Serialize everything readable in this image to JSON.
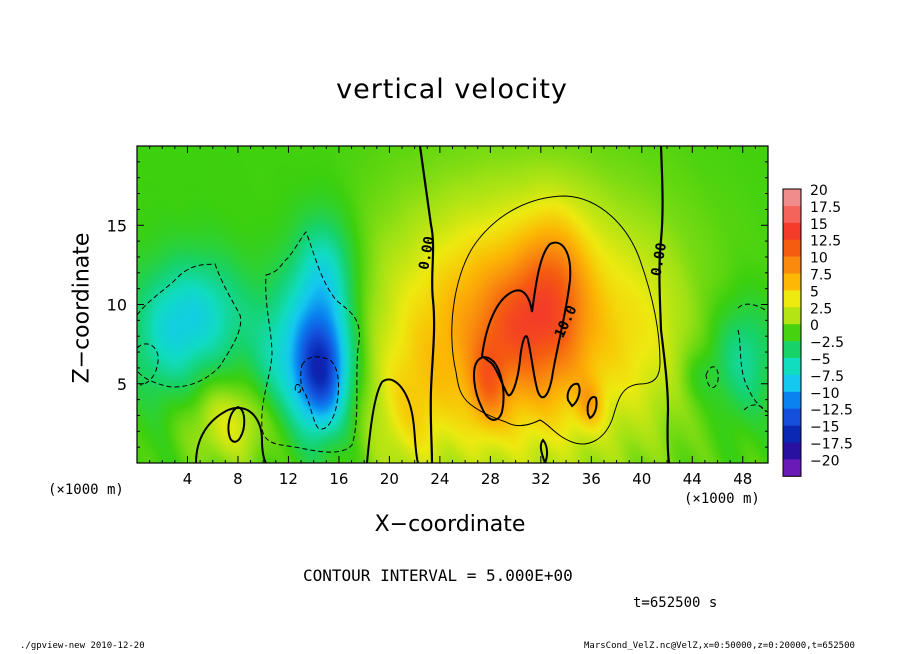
{
  "chart_data": {
    "type": "heatmap",
    "title": "vertical velocity",
    "xlabel": "X−coordinate",
    "ylabel": "Z−coordinate",
    "x_unit_label": "(×1000 m)",
    "xlim": [
      0,
      50
    ],
    "ylim": [
      0,
      20
    ],
    "x_ticks": [
      4,
      8,
      12,
      16,
      20,
      24,
      28,
      32,
      36,
      40,
      44,
      48
    ],
    "y_ticks": [
      5,
      10,
      15
    ],
    "colorbar": {
      "labels": [
        "20",
        "17.5",
        "15",
        "12.5",
        "10",
        "7.5",
        "5",
        "2.5",
        "0",
        "−2.5",
        "−5",
        "−7.5",
        "−10",
        "−12.5",
        "−15",
        "−17.5",
        "−20"
      ],
      "colors": [
        "#f08c8c",
        "#f5645a",
        "#f43c28",
        "#f55c10",
        "#f98a0e",
        "#fcb804",
        "#eeea10",
        "#b4e414",
        "#46d20e",
        "#17d268",
        "#10dcc0",
        "#14c8f0",
        "#0a82f0",
        "#1450dc",
        "#0a28b4",
        "#2810a0",
        "#6a1ab6"
      ]
    },
    "contour_labels": [
      {
        "text": "0.00",
        "x": 23.3,
        "y": 13.2,
        "rotate": -80
      },
      {
        "text": "0.00",
        "x": 41.7,
        "y": 12.8,
        "rotate": -80
      },
      {
        "text": "10.0",
        "x": 34.3,
        "y": 8.8,
        "rotate": -65
      }
    ],
    "contour_interval": 5.0,
    "blobs": [
      {
        "x": 30.5,
        "y": 8.2,
        "sx": 9.0,
        "sy": 7.0,
        "a": 5.2
      },
      {
        "x": 29.8,
        "y": 8.5,
        "sx": 6.0,
        "sy": 4.6,
        "a": 5.0
      },
      {
        "x": 33.0,
        "y": 10.8,
        "sx": 1.8,
        "sy": 3.4,
        "a": 5.0
      },
      {
        "x": 30.0,
        "y": 8.8,
        "sx": 1.7,
        "sy": 2.2,
        "a": 3.0
      },
      {
        "x": 27.8,
        "y": 5.0,
        "sx": 1.0,
        "sy": 1.9,
        "a": 4.5
      },
      {
        "x": 35.5,
        "y": 3.8,
        "sx": 0.6,
        "sy": 1.0,
        "a": 2.0
      },
      {
        "x": 36.2,
        "y": 3.6,
        "sx": 0.6,
        "sy": 1.0,
        "a": 2.0
      },
      {
        "x": 21.5,
        "y": 3.0,
        "sx": 2.0,
        "sy": 3.0,
        "a": 2.8
      },
      {
        "x": 7.5,
        "y": 2.5,
        "sx": 2.6,
        "sy": 2.0,
        "a": 4.4
      },
      {
        "x": 40.5,
        "y": 8.0,
        "sx": 2.0,
        "sy": 4.0,
        "a": 1.2
      },
      {
        "x": 14.6,
        "y": 5.6,
        "sx": 1.5,
        "sy": 2.5,
        "a": -11.0
      },
      {
        "x": 14.2,
        "y": 8.2,
        "sx": 2.2,
        "sy": 4.0,
        "a": -6.5
      },
      {
        "x": 15.0,
        "y": 12.2,
        "sx": 1.5,
        "sy": 2.4,
        "a": -3.5
      },
      {
        "x": 10.8,
        "y": 6.2,
        "sx": 1.6,
        "sy": 2.8,
        "a": -3.0
      },
      {
        "x": 5.0,
        "y": 9.3,
        "sx": 2.8,
        "sy": 2.6,
        "a": -5.5
      },
      {
        "x": 2.2,
        "y": 7.5,
        "sx": 2.0,
        "sy": 2.8,
        "a": -3.0
      },
      {
        "x": 48.0,
        "y": 6.5,
        "sx": 1.8,
        "sy": 2.6,
        "a": -4.5
      },
      {
        "x": 44.5,
        "y": 5.5,
        "sx": 1.0,
        "sy": 1.2,
        "a": -1.5
      }
    ]
  },
  "footer": {
    "contour_interval_text": "CONTOUR INTERVAL = 5.000E+00",
    "time_text": "t=652500 s",
    "program_text": "./gpview-new  2010-12-20",
    "file_text": "MarsCond_VelZ.nc@VelZ,x=0:50000,z=0:20000,t=652500"
  }
}
